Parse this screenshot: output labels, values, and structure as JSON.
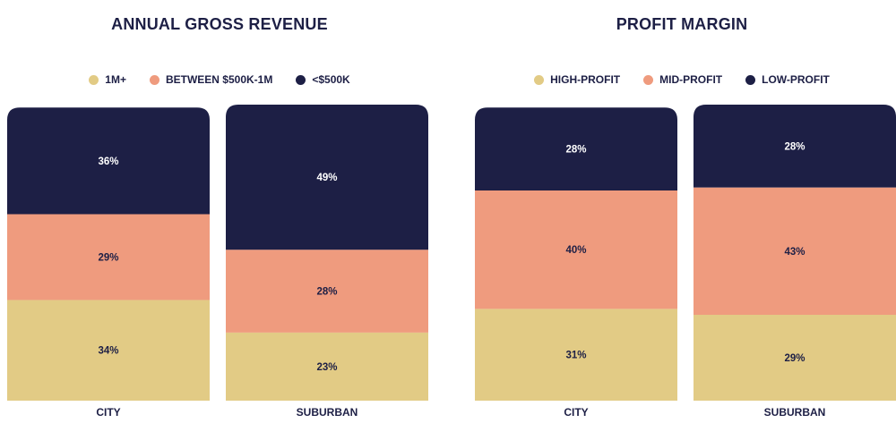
{
  "chart_data": [
    {
      "type": "bar",
      "stacked": true,
      "title": "ANNUAL GROSS REVENUE",
      "categories": [
        "CITY",
        "SUBURBAN"
      ],
      "series": [
        {
          "name": "1M+",
          "values": [
            34,
            23
          ],
          "color": "#e2cb85"
        },
        {
          "name": "BETWEEN $500K-1M",
          "values": [
            29,
            28
          ],
          "color": "#ef9b7e"
        },
        {
          "name": "<$500K",
          "values": [
            36,
            49
          ],
          "color": "#1d1f45"
        }
      ],
      "value_labels": [
        [
          "34%",
          "23%"
        ],
        [
          "29%",
          "28%"
        ],
        [
          "36%",
          "49%"
        ]
      ],
      "ylim": [
        0,
        100
      ],
      "grid": false,
      "legend_position": "top"
    },
    {
      "type": "bar",
      "stacked": true,
      "title": "PROFIT MARGIN",
      "categories": [
        "CITY",
        "SUBURBAN"
      ],
      "series": [
        {
          "name": "HIGH-PROFIT",
          "values": [
            31,
            29
          ],
          "color": "#e2cb85"
        },
        {
          "name": "MID-PROFIT",
          "values": [
            40,
            43
          ],
          "color": "#ef9b7e"
        },
        {
          "name": "LOW-PROFIT",
          "values": [
            28,
            28
          ],
          "color": "#1d1f45"
        }
      ],
      "value_labels": [
        [
          "31%",
          "29%"
        ],
        [
          "40%",
          "43%"
        ],
        [
          "28%",
          "28%"
        ]
      ],
      "ylim": [
        0,
        100
      ],
      "grid": false,
      "legend_position": "top"
    }
  ],
  "colors": {
    "text": "#1d1f45",
    "label_on_dark": "#ffffff",
    "label_on_light": "#1d1f45"
  }
}
